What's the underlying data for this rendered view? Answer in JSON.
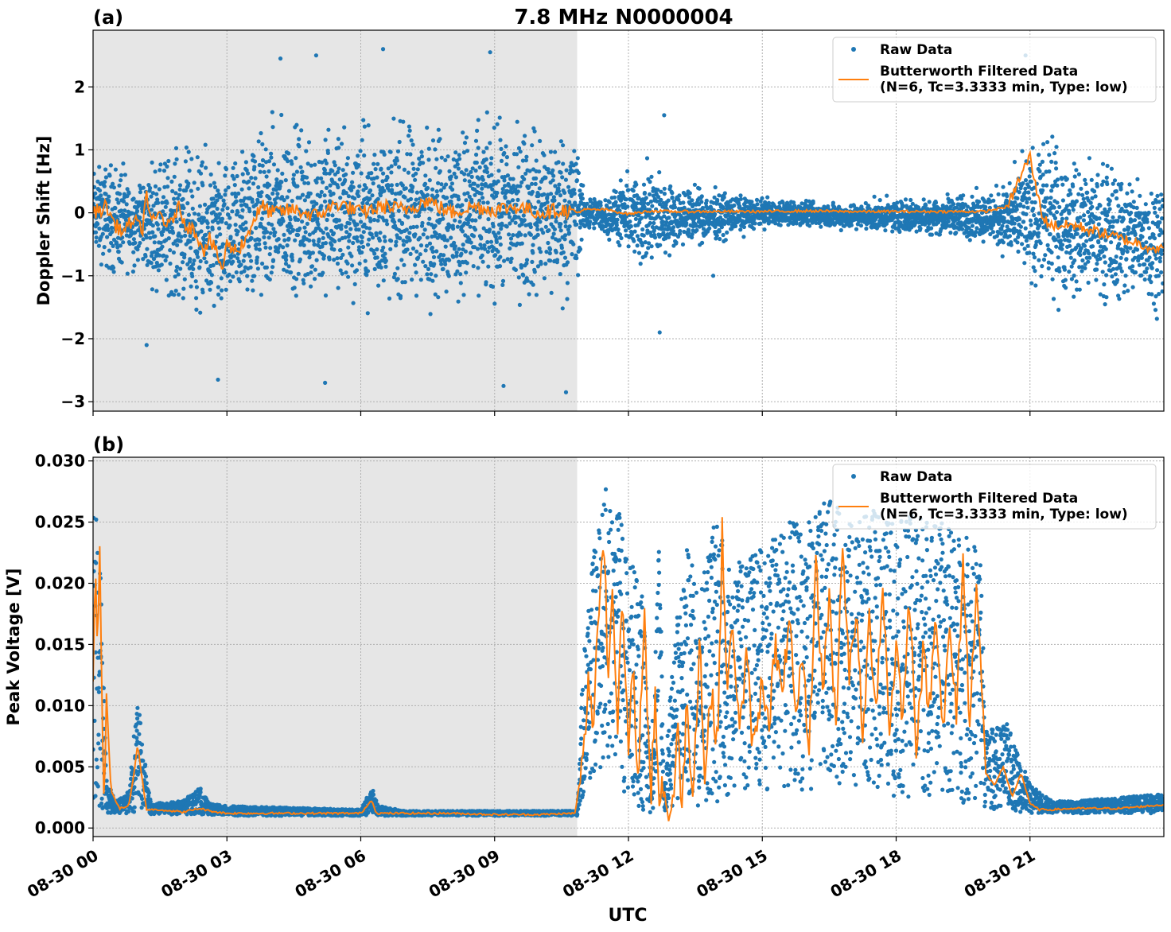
{
  "figure": {
    "title": "7.8 MHz N0000004",
    "xlabel": "UTC",
    "colors": {
      "raw": "#1f77b4",
      "filtered": "#ff7f0e",
      "shade": "#e6e6e6",
      "grid": "#b0b0b0"
    }
  },
  "chart_data": [
    {
      "type": "scatter",
      "panel_label": "(a)",
      "ylabel": "Doppler Shift [Hz]",
      "xlim": [
        0,
        24
      ],
      "ylim": [
        -3.15,
        2.9
      ],
      "yticks": [
        2,
        1,
        0,
        -1,
        -2,
        -3
      ],
      "ytick_labels": [
        "2",
        "1",
        "0",
        "−1",
        "−2",
        "−3"
      ],
      "xticks": [
        0,
        3,
        6,
        9,
        12,
        15,
        18,
        21
      ],
      "grid": true,
      "legend_position": "top-right",
      "shaded_region": [
        0,
        10.85
      ],
      "series": [
        {
          "name": "Raw Data",
          "style": "points",
          "envelope_hours": [
            0,
            0.5,
            1,
            1.5,
            2,
            2.5,
            3,
            3.5,
            4,
            5,
            6,
            7,
            8,
            9,
            10,
            10.85,
            11,
            11.5,
            12,
            12.5,
            13,
            14,
            15,
            16,
            17,
            18,
            19,
            20,
            20.5,
            21,
            21.5,
            22,
            23,
            24
          ],
          "envelope_upper": [
            0.8,
            1.0,
            0.6,
            1.1,
            1.2,
            1.1,
            0.9,
            1.5,
            1.6,
            1.6,
            1.6,
            1.6,
            1.6,
            1.6,
            1.6,
            1.5,
            0.3,
            0.3,
            0.7,
            0.9,
            0.5,
            0.4,
            0.25,
            0.2,
            0.2,
            0.25,
            0.3,
            0.4,
            0.6,
            1.2,
            1.3,
            1.0,
            0.9,
            0.7
          ],
          "envelope_lower": [
            -0.8,
            -1.2,
            -0.9,
            -1.4,
            -1.6,
            -1.9,
            -1.9,
            -1.7,
            -1.6,
            -1.6,
            -1.6,
            -1.6,
            -1.6,
            -1.6,
            -1.6,
            -1.5,
            -0.3,
            -0.4,
            -0.8,
            -1.1,
            -0.6,
            -0.5,
            -0.25,
            -0.25,
            -0.3,
            -0.35,
            -0.4,
            -0.5,
            -0.8,
            -1.3,
            -1.5,
            -1.5,
            -1.6,
            -1.6
          ],
          "outliers": [
            [
              1.2,
              -2.1
            ],
            [
              2.8,
              -2.65
            ],
            [
              4.2,
              2.45
            ],
            [
              5.0,
              2.5
            ],
            [
              5.2,
              -2.7
            ],
            [
              6.5,
              2.6
            ],
            [
              8.9,
              2.55
            ],
            [
              9.2,
              -2.75
            ],
            [
              10.6,
              -2.85
            ],
            [
              12.8,
              1.55
            ],
            [
              12.7,
              -1.9
            ],
            [
              13.9,
              -1.0
            ],
            [
              20.9,
              2.5
            ]
          ]
        },
        {
          "name": "Butterworth Filtered Data\n(N=6, Tc=3.3333 min, Type: low)",
          "style": "line",
          "x": [
            0,
            0.3,
            0.5,
            0.7,
            0.9,
            1.1,
            1.2,
            1.3,
            1.5,
            1.7,
            1.9,
            2.1,
            2.3,
            2.5,
            2.6,
            2.8,
            2.9,
            3.0,
            3.2,
            3.4,
            3.6,
            3.8,
            4.0,
            4.5,
            5.0,
            5.5,
            6.0,
            6.5,
            7.0,
            7.5,
            8.0,
            8.5,
            9.0,
            9.5,
            10.0,
            10.5,
            10.85,
            11.0,
            11.5,
            12.0,
            12.5,
            13.0,
            14.0,
            15.0,
            16.0,
            17.0,
            18.0,
            19.0,
            20.0,
            20.5,
            20.8,
            21.0,
            21.1,
            21.3,
            21.5,
            22.0,
            22.5,
            23.0,
            23.5,
            24.0
          ],
          "y": [
            0.0,
            0.1,
            -0.2,
            -0.3,
            -0.1,
            -0.3,
            0.35,
            -0.2,
            0.0,
            -0.25,
            0.1,
            -0.2,
            -0.3,
            -0.6,
            -0.4,
            -0.7,
            -0.9,
            -0.5,
            -0.6,
            -0.45,
            -0.1,
            0.1,
            0.0,
            0.05,
            -0.05,
            0.15,
            0.0,
            0.1,
            0.05,
            0.2,
            0.0,
            0.1,
            0.05,
            0.1,
            0.0,
            0.05,
            0.0,
            0.05,
            0.05,
            -0.02,
            0.03,
            0.02,
            0.02,
            0.02,
            0.03,
            0.02,
            0.02,
            0.02,
            0.02,
            0.1,
            0.6,
            0.9,
            0.5,
            -0.1,
            -0.2,
            -0.2,
            -0.3,
            -0.4,
            -0.5,
            -0.6
          ]
        }
      ]
    },
    {
      "type": "scatter",
      "panel_label": "(b)",
      "ylabel": "Peak Voltage [V]",
      "xlabel": "UTC",
      "xlim": [
        0,
        24
      ],
      "ylim": [
        -0.0007,
        0.0303
      ],
      "yticks": [
        0.0,
        0.005,
        0.01,
        0.015,
        0.02,
        0.025,
        0.03
      ],
      "ytick_labels": [
        "0.000",
        "0.005",
        "0.010",
        "0.015",
        "0.020",
        "0.025",
        "0.030"
      ],
      "xticks": [
        0,
        3,
        6,
        9,
        12,
        15,
        18,
        21
      ],
      "xtick_labels": [
        "08-30 00",
        "08-30 03",
        "08-30 06",
        "08-30 09",
        "08-30 12",
        "08-30 15",
        "08-30 18",
        "08-30 21"
      ],
      "grid": true,
      "legend_position": "top-right",
      "shaded_region": [
        0,
        10.85
      ],
      "series": [
        {
          "name": "Raw Data",
          "style": "points",
          "envelope_hours": [
            0,
            0.1,
            0.2,
            0.3,
            0.5,
            0.8,
            1.0,
            1.1,
            1.3,
            2.0,
            2.4,
            2.6,
            3.0,
            6.0,
            6.25,
            6.4,
            7.0,
            10.85,
            11.0,
            11.2,
            11.5,
            11.8,
            12.0,
            12.3,
            12.5,
            12.7,
            12.8,
            13.0,
            13.3,
            13.6,
            14.0,
            14.2,
            14.5,
            15.0,
            15.5,
            16.0,
            16.5,
            17.0,
            17.5,
            18.0,
            18.5,
            19.0,
            19.5,
            19.9,
            20.0,
            20.5,
            21.0,
            21.5,
            22.0,
            23.0,
            24.0
          ],
          "envelope_upper": [
            0.029,
            0.028,
            0.018,
            0.004,
            0.0022,
            0.003,
            0.011,
            0.007,
            0.002,
            0.0022,
            0.0033,
            0.002,
            0.0018,
            0.0015,
            0.0033,
            0.0018,
            0.0014,
            0.0014,
            0.015,
            0.022,
            0.028,
            0.026,
            0.022,
            0.021,
            0.005,
            0.026,
            0.003,
            0.015,
            0.023,
            0.02,
            0.027,
            0.021,
            0.022,
            0.023,
            0.025,
            0.025,
            0.027,
            0.025,
            0.026,
            0.025,
            0.026,
            0.025,
            0.024,
            0.023,
            0.008,
            0.0085,
            0.0035,
            0.0022,
            0.0022,
            0.0025,
            0.0028
          ],
          "envelope_lower": [
            0.0015,
            0.0015,
            0.0012,
            0.0012,
            0.0012,
            0.0012,
            0.0014,
            0.0013,
            0.0011,
            0.0011,
            0.0011,
            0.0011,
            0.001,
            0.001,
            0.001,
            0.001,
            0.001,
            0.001,
            0.002,
            0.004,
            0.005,
            0.004,
            0.002,
            0.0012,
            0.0012,
            0.002,
            0.0012,
            0.0015,
            0.002,
            0.0018,
            0.002,
            0.002,
            0.0025,
            0.003,
            0.003,
            0.003,
            0.0035,
            0.0035,
            0.003,
            0.0025,
            0.0025,
            0.0025,
            0.002,
            0.0018,
            0.0015,
            0.0014,
            0.0012,
            0.0012,
            0.0012,
            0.0012,
            0.0012
          ]
        },
        {
          "name": "Butterworth Filtered Data\n(N=6, Tc=3.3333 min, Type: low)",
          "style": "line",
          "x": [
            0,
            0.05,
            0.1,
            0.15,
            0.2,
            0.25,
            0.3,
            0.4,
            0.6,
            0.8,
            0.9,
            1.0,
            1.1,
            1.2,
            1.5,
            2.0,
            2.4,
            2.6,
            3.0,
            4.0,
            5.0,
            6.0,
            6.25,
            6.35,
            7.0,
            8.0,
            9.0,
            10.0,
            10.8,
            11.0,
            11.1,
            11.2,
            11.3,
            11.45,
            11.55,
            11.65,
            11.75,
            11.85,
            12.0,
            12.1,
            12.2,
            12.35,
            12.5,
            12.6,
            12.7,
            12.75,
            12.85,
            13.0,
            13.1,
            13.2,
            13.3,
            13.45,
            13.6,
            13.7,
            13.85,
            14.0,
            14.1,
            14.2,
            14.35,
            14.5,
            14.65,
            14.8,
            15.0,
            15.15,
            15.3,
            15.45,
            15.6,
            15.75,
            15.9,
            16.05,
            16.2,
            16.35,
            16.5,
            16.65,
            16.8,
            16.95,
            17.1,
            17.25,
            17.4,
            17.55,
            17.7,
            17.85,
            18.0,
            18.15,
            18.3,
            18.45,
            18.6,
            18.75,
            18.9,
            19.05,
            19.2,
            19.35,
            19.5,
            19.65,
            19.8,
            19.9,
            20.0,
            20.2,
            20.4,
            20.6,
            20.8,
            21.0,
            21.2,
            21.5,
            22.0,
            23.0,
            24.0
          ],
          "y": [
            0.012,
            0.022,
            0.014,
            0.023,
            0.01,
            0.001,
            0.011,
            0.003,
            0.0016,
            0.0018,
            0.004,
            0.0068,
            0.004,
            0.0015,
            0.0015,
            0.0013,
            0.0016,
            0.0014,
            0.0012,
            0.0012,
            0.0012,
            0.0012,
            0.0023,
            0.0012,
            0.0012,
            0.0012,
            0.0011,
            0.0011,
            0.0012,
            0.006,
            0.012,
            0.008,
            0.016,
            0.024,
            0.012,
            0.021,
            0.008,
            0.019,
            0.006,
            0.014,
            0.002,
            0.018,
            0.002,
            0.011,
            0.0015,
            0.004,
            0.0013,
            0.002,
            0.008,
            0.002,
            0.01,
            0.003,
            0.016,
            0.004,
            0.011,
            0.007,
            0.024,
            0.012,
            0.016,
            0.008,
            0.014,
            0.006,
            0.012,
            0.009,
            0.015,
            0.01,
            0.018,
            0.008,
            0.014,
            0.006,
            0.022,
            0.011,
            0.019,
            0.008,
            0.024,
            0.012,
            0.018,
            0.007,
            0.017,
            0.01,
            0.02,
            0.008,
            0.015,
            0.009,
            0.019,
            0.007,
            0.014,
            0.01,
            0.018,
            0.008,
            0.016,
            0.009,
            0.022,
            0.008,
            0.021,
            0.013,
            0.0045,
            0.0035,
            0.005,
            0.0025,
            0.0045,
            0.002,
            0.0015,
            0.0015,
            0.0016,
            0.0016,
            0.0019
          ]
        }
      ]
    }
  ]
}
